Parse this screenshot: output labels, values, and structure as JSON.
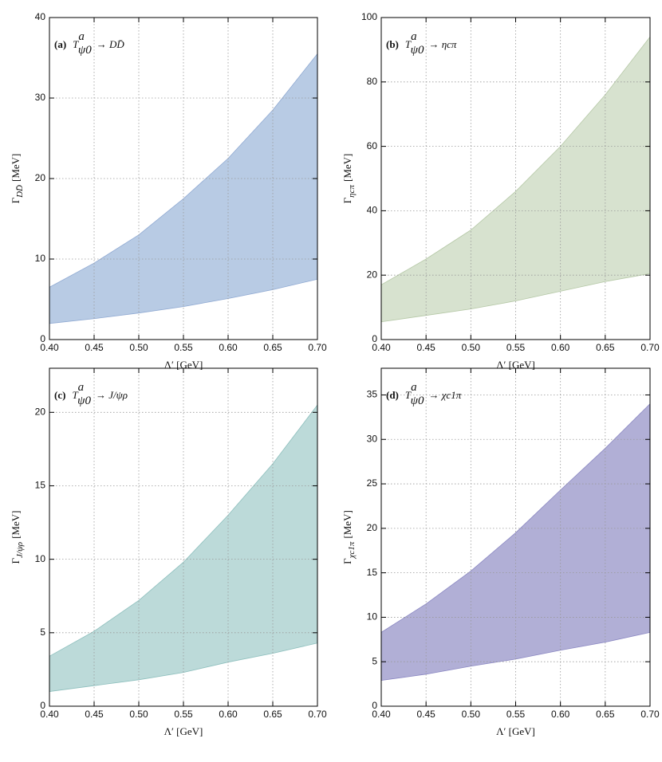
{
  "chart_data": [
    {
      "type": "band",
      "color": "#b8cbe4",
      "edge": "#8fa9d2",
      "title": {
        "label": "(a)",
        "base": "T",
        "sup": "a",
        "sub": "ψ0",
        "rest": "→ DD̄"
      },
      "ylabel": {
        "base": "Γ",
        "sub": "DD̄",
        "unit": "[MeV]"
      },
      "xlabel": "Λ′ [GeV]",
      "x": [
        0.4,
        0.45,
        0.5,
        0.55,
        0.6,
        0.65,
        0.7
      ],
      "upper": [
        6.5,
        9.5,
        13,
        17.5,
        22.5,
        28.5,
        35.5
      ],
      "lower": [
        2.0,
        2.6,
        3.3,
        4.1,
        5.1,
        6.2,
        7.5
      ],
      "xlim": [
        0.4,
        0.7
      ],
      "ylim": [
        0,
        40
      ],
      "xticks": [
        {
          "value": 0.4,
          "label": "0.40"
        },
        {
          "value": 0.45,
          "label": "0.45"
        },
        {
          "value": 0.5,
          "label": "0.50"
        },
        {
          "value": 0.55,
          "label": "0.55"
        },
        {
          "value": 0.6,
          "label": "0.60"
        },
        {
          "value": 0.65,
          "label": "0.65"
        },
        {
          "value": 0.7,
          "label": "0.70"
        }
      ],
      "yticks": [
        0,
        10,
        20,
        30,
        40
      ],
      "grid": true
    },
    {
      "type": "band",
      "color": "#d7e2cf",
      "edge": "#b5c8a6",
      "title": {
        "label": "(b)",
        "base": "T",
        "sup": "a",
        "sub": "ψ0",
        "rest": "→ ηcπ"
      },
      "ylabel": {
        "base": "Γ",
        "sub": "ηcπ",
        "unit": "[MeV]"
      },
      "xlabel": "Λ′ [GeV]",
      "x": [
        0.4,
        0.45,
        0.5,
        0.55,
        0.6,
        0.65,
        0.7
      ],
      "upper": [
        17,
        25,
        34,
        46,
        60,
        76,
        94
      ],
      "lower": [
        5.5,
        7.5,
        9.5,
        12,
        15,
        18,
        20.5
      ],
      "xlim": [
        0.4,
        0.7
      ],
      "ylim": [
        0,
        100
      ],
      "xticks": [
        {
          "value": 0.4,
          "label": "0.40"
        },
        {
          "value": 0.45,
          "label": "0.45"
        },
        {
          "value": 0.5,
          "label": "0.50"
        },
        {
          "value": 0.55,
          "label": "0.55"
        },
        {
          "value": 0.6,
          "label": "0.60"
        },
        {
          "value": 0.65,
          "label": "0.65"
        },
        {
          "value": 0.7,
          "label": "0.70"
        }
      ],
      "yticks": [
        0,
        20,
        40,
        60,
        80,
        100
      ],
      "grid": true
    },
    {
      "type": "band",
      "color": "#bcdad9",
      "edge": "#8dbfbd",
      "title": {
        "label": "(c)",
        "base": "T",
        "sup": "a",
        "sub": "ψ0",
        "rest": "→ J/ψρ"
      },
      "ylabel": {
        "base": "Γ",
        "sub": "J/ψρ",
        "unit": "[MeV]"
      },
      "xlabel": "Λ′ [GeV]",
      "x": [
        0.4,
        0.45,
        0.5,
        0.55,
        0.6,
        0.65,
        0.7
      ],
      "upper": [
        3.4,
        5.1,
        7.2,
        9.8,
        13,
        16.5,
        20.5
      ],
      "lower": [
        1.0,
        1.4,
        1.8,
        2.3,
        3.0,
        3.6,
        4.3
      ],
      "xlim": [
        0.4,
        0.7
      ],
      "ylim": [
        0,
        23
      ],
      "xticks": [
        {
          "value": 0.4,
          "label": "0.40"
        },
        {
          "value": 0.45,
          "label": "0.45"
        },
        {
          "value": 0.5,
          "label": "0.50"
        },
        {
          "value": 0.55,
          "label": "0.55"
        },
        {
          "value": 0.6,
          "label": "0.60"
        },
        {
          "value": 0.65,
          "label": "0.65"
        },
        {
          "value": 0.7,
          "label": "0.70"
        }
      ],
      "yticks": [
        0,
        5,
        10,
        15,
        20
      ],
      "grid": true
    },
    {
      "type": "band",
      "color": "#b1afd6",
      "edge": "#8a87c2",
      "title": {
        "label": "(d)",
        "base": "T",
        "sup": "a",
        "sub": "ψ0",
        "rest": "→ χc1π"
      },
      "ylabel": {
        "base": "Γ",
        "sub": "χc1π",
        "unit": "[MeV]"
      },
      "xlabel": "Λ′ [GeV]",
      "x": [
        0.4,
        0.45,
        0.5,
        0.55,
        0.6,
        0.65,
        0.7
      ],
      "upper": [
        8.3,
        11.5,
        15.2,
        19.5,
        24.3,
        29,
        34
      ],
      "lower": [
        2.9,
        3.6,
        4.5,
        5.3,
        6.3,
        7.2,
        8.3
      ],
      "xlim": [
        0.4,
        0.7
      ],
      "ylim": [
        0,
        38
      ],
      "xticks": [
        {
          "value": 0.4,
          "label": "0.40"
        },
        {
          "value": 0.45,
          "label": "0.45"
        },
        {
          "value": 0.5,
          "label": "0.50"
        },
        {
          "value": 0.55,
          "label": "0.55"
        },
        {
          "value": 0.6,
          "label": "0.60"
        },
        {
          "value": 0.65,
          "label": "0.65"
        },
        {
          "value": 0.7,
          "label": "0.70"
        }
      ],
      "yticks": [
        0,
        5,
        10,
        15,
        20,
        25,
        30,
        35
      ],
      "grid": true
    }
  ]
}
